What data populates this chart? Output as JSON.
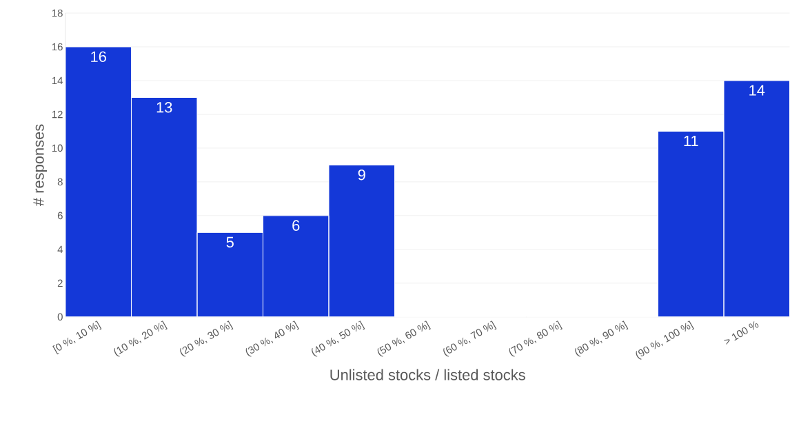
{
  "chart_data": {
    "type": "bar",
    "xlabel": "Unlisted stocks / listed stocks",
    "ylabel": "# responses",
    "categories": [
      "[0 %, 10 %]",
      "(10 %, 20 %]",
      "(20 %, 30 %]",
      "(30 %, 40 %]",
      "(40 %, 50 %]",
      "(50 %, 60 %]",
      "(60 %, 70 %]",
      "(70 %, 80 %]",
      "(80 %, 90 %]",
      "(90 %, 100 %]",
      "> 100 %"
    ],
    "values": [
      16,
      13,
      5,
      6,
      9,
      0,
      0,
      0,
      0,
      11,
      14
    ],
    "value_labels": [
      "16",
      "13",
      "5",
      "6",
      "9",
      null,
      null,
      null,
      null,
      "11",
      "14"
    ],
    "color": "#1438d8",
    "ylim": [
      0,
      18
    ],
    "yticks": [
      0,
      2,
      4,
      6,
      8,
      10,
      12,
      14,
      16,
      18
    ],
    "grid": "y"
  }
}
